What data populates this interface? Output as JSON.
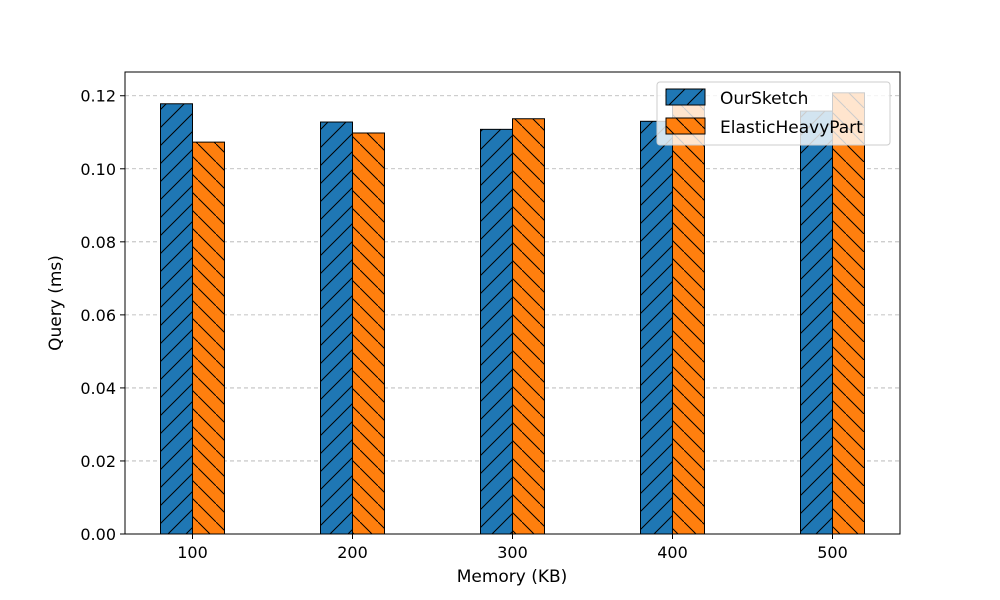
{
  "chart_data": {
    "type": "bar",
    "title": "",
    "xlabel": "Memory (KB)",
    "ylabel": "Query (ms)",
    "categories": [
      "100",
      "200",
      "300",
      "400",
      "500"
    ],
    "series": [
      {
        "name": "OurSketch",
        "values": [
          0.1178,
          0.1128,
          0.1108,
          0.113,
          0.1158
        ],
        "color": "#1f77b4",
        "hatch": "/"
      },
      {
        "name": "ElasticHeavyPart",
        "values": [
          0.1073,
          0.1098,
          0.1137,
          0.118,
          0.1208
        ],
        "color": "#ff7f0e",
        "hatch": "\\"
      }
    ],
    "ylim": [
      0,
      0.1265
    ],
    "yticks": [
      "0.00",
      "0.02",
      "0.04",
      "0.06",
      "0.08",
      "0.10",
      "0.12"
    ],
    "grid": "y-dashed",
    "legend_position": "top-right"
  }
}
